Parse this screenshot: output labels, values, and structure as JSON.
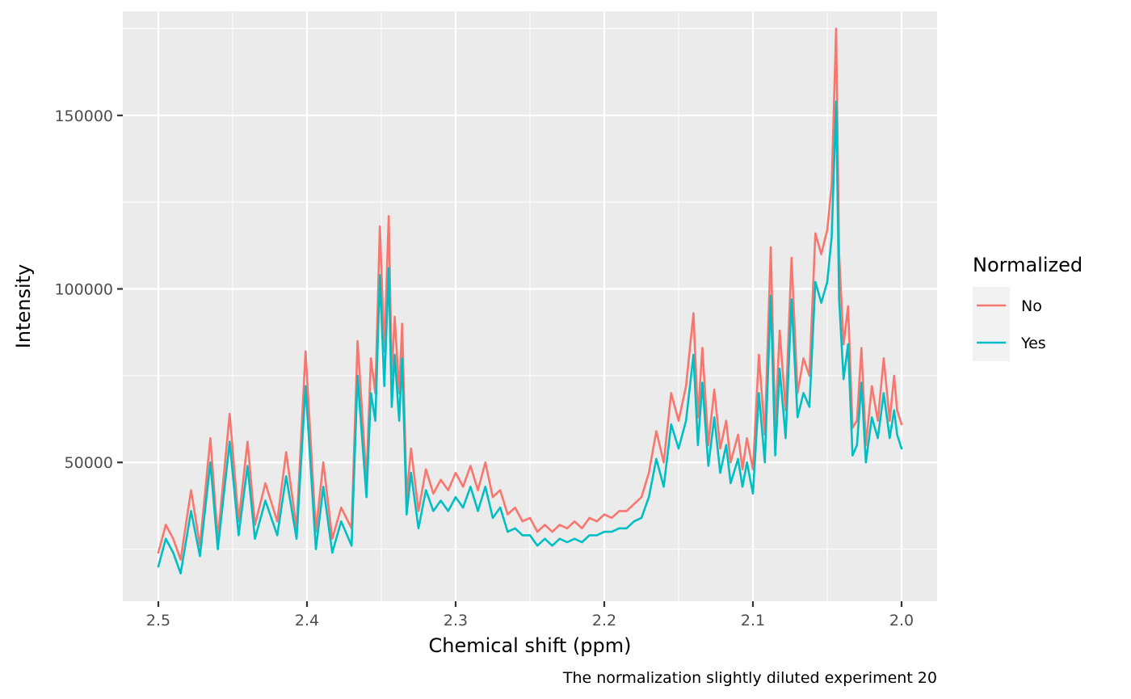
{
  "chart_data": {
    "type": "line",
    "title": "",
    "xlabel": "Chemical shift (ppm)",
    "ylabel": "Intensity",
    "caption": "The normalization slightly diluted experiment 20",
    "xlim": [
      2.5,
      2.0
    ],
    "x_reversed": true,
    "ylim": [
      10000,
      180000
    ],
    "x_ticks": [
      2.5,
      2.4,
      2.3,
      2.2,
      2.1,
      2.0
    ],
    "x_tick_labels": [
      "2.5",
      "2.4",
      "2.3",
      "2.2",
      "2.1",
      "2.0"
    ],
    "y_ticks": [
      50000,
      100000,
      150000
    ],
    "y_tick_labels": [
      "50000",
      "100000",
      "150000"
    ],
    "grid": true,
    "legend": {
      "title": "Normalized",
      "position": "right"
    },
    "series": [
      {
        "name": "No",
        "color": "#F8766D",
        "x": [
          2.5,
          2.495,
          2.49,
          2.485,
          2.478,
          2.472,
          2.465,
          2.46,
          2.452,
          2.446,
          2.44,
          2.435,
          2.428,
          2.42,
          2.414,
          2.407,
          2.401,
          2.394,
          2.389,
          2.383,
          2.377,
          2.37,
          2.366,
          2.36,
          2.357,
          2.354,
          2.351,
          2.348,
          2.345,
          2.343,
          2.341,
          2.338,
          2.336,
          2.333,
          2.33,
          2.325,
          2.32,
          2.315,
          2.31,
          2.305,
          2.3,
          2.295,
          2.29,
          2.285,
          2.28,
          2.275,
          2.27,
          2.265,
          2.26,
          2.255,
          2.25,
          2.245,
          2.24,
          2.235,
          2.23,
          2.225,
          2.22,
          2.215,
          2.21,
          2.205,
          2.2,
          2.195,
          2.19,
          2.185,
          2.18,
          2.175,
          2.17,
          2.165,
          2.16,
          2.155,
          2.15,
          2.145,
          2.14,
          2.137,
          2.134,
          2.13,
          2.126,
          2.122,
          2.118,
          2.115,
          2.11,
          2.107,
          2.104,
          2.1,
          2.096,
          2.092,
          2.088,
          2.085,
          2.082,
          2.078,
          2.074,
          2.07,
          2.066,
          2.062,
          2.058,
          2.054,
          2.05,
          2.047,
          2.044,
          2.042,
          2.039,
          2.036,
          2.033,
          2.03,
          2.027,
          2.024,
          2.02,
          2.016,
          2.012,
          2.008,
          2.005,
          2.003,
          2.0
        ],
        "y": [
          24000,
          32000,
          28000,
          22000,
          42000,
          26000,
          57000,
          28000,
          64000,
          33000,
          56000,
          32000,
          44000,
          33000,
          53000,
          31000,
          82000,
          30000,
          50000,
          28000,
          37000,
          31000,
          85000,
          45000,
          80000,
          70000,
          118000,
          82000,
          121000,
          75000,
          92000,
          70000,
          90000,
          40000,
          54000,
          36000,
          48000,
          41000,
          45000,
          42000,
          47000,
          43000,
          49000,
          42000,
          50000,
          40000,
          42000,
          35000,
          37000,
          33000,
          34000,
          30000,
          32000,
          30000,
          32000,
          31000,
          33000,
          31000,
          34000,
          33000,
          35000,
          34000,
          36000,
          36000,
          38000,
          40000,
          47000,
          59000,
          50000,
          70000,
          62000,
          72000,
          93000,
          63000,
          83000,
          55000,
          71000,
          54000,
          62000,
          50000,
          58000,
          48000,
          57000,
          48000,
          81000,
          58000,
          112000,
          60000,
          88000,
          65000,
          109000,
          70000,
          80000,
          75000,
          116000,
          110000,
          117000,
          130000,
          175000,
          110000,
          84000,
          95000,
          60000,
          62000,
          83000,
          55000,
          72000,
          62000,
          80000,
          62000,
          75000,
          65000,
          61000
        ]
      },
      {
        "name": "Yes",
        "color": "#00BFC4",
        "x": [
          2.5,
          2.495,
          2.49,
          2.485,
          2.478,
          2.472,
          2.465,
          2.46,
          2.452,
          2.446,
          2.44,
          2.435,
          2.428,
          2.42,
          2.414,
          2.407,
          2.401,
          2.394,
          2.389,
          2.383,
          2.377,
          2.37,
          2.366,
          2.36,
          2.357,
          2.354,
          2.351,
          2.348,
          2.345,
          2.343,
          2.341,
          2.338,
          2.336,
          2.333,
          2.33,
          2.325,
          2.32,
          2.315,
          2.31,
          2.305,
          2.3,
          2.295,
          2.29,
          2.285,
          2.28,
          2.275,
          2.27,
          2.265,
          2.26,
          2.255,
          2.25,
          2.245,
          2.24,
          2.235,
          2.23,
          2.225,
          2.22,
          2.215,
          2.21,
          2.205,
          2.2,
          2.195,
          2.19,
          2.185,
          2.18,
          2.175,
          2.17,
          2.165,
          2.16,
          2.155,
          2.15,
          2.145,
          2.14,
          2.137,
          2.134,
          2.13,
          2.126,
          2.122,
          2.118,
          2.115,
          2.11,
          2.107,
          2.104,
          2.1,
          2.096,
          2.092,
          2.088,
          2.085,
          2.082,
          2.078,
          2.074,
          2.07,
          2.066,
          2.062,
          2.058,
          2.054,
          2.05,
          2.047,
          2.044,
          2.042,
          2.039,
          2.036,
          2.033,
          2.03,
          2.027,
          2.024,
          2.02,
          2.016,
          2.012,
          2.008,
          2.005,
          2.003,
          2.0
        ],
        "y": [
          20000,
          28000,
          24000,
          18000,
          36000,
          23000,
          50000,
          25000,
          56000,
          29000,
          49000,
          28000,
          39000,
          29000,
          46000,
          28000,
          72000,
          25000,
          43000,
          24000,
          33000,
          26000,
          75000,
          40000,
          70000,
          62000,
          104000,
          72000,
          106000,
          66000,
          81000,
          62000,
          80000,
          35000,
          47000,
          31000,
          42000,
          36000,
          39000,
          36000,
          40000,
          37000,
          43000,
          36000,
          43000,
          34000,
          37000,
          30000,
          31000,
          29000,
          29000,
          26000,
          28000,
          26000,
          28000,
          27000,
          28000,
          27000,
          29000,
          29000,
          30000,
          30000,
          31000,
          31000,
          33000,
          34000,
          40000,
          51000,
          43000,
          61000,
          54000,
          62000,
          81000,
          55000,
          73000,
          49000,
          63000,
          47000,
          55000,
          44000,
          51000,
          43000,
          50000,
          41000,
          70000,
          50000,
          98000,
          52000,
          77000,
          57000,
          97000,
          63000,
          70000,
          66000,
          102000,
          96000,
          102000,
          115000,
          154000,
          97000,
          74000,
          84000,
          52000,
          55000,
          73000,
          50000,
          63000,
          57000,
          70000,
          57000,
          65000,
          58000,
          54000
        ]
      }
    ]
  }
}
